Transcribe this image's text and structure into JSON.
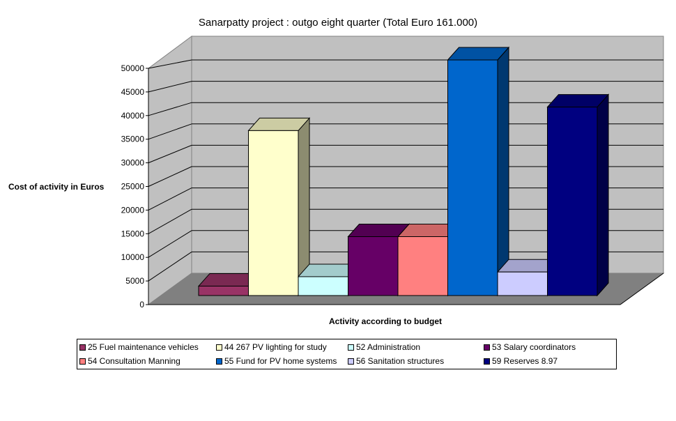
{
  "chart_data": {
    "type": "bar",
    "title": "Sanarpatty project : outgo eight quarter (Total Euro 161.000)",
    "xlabel": "Activity according to budget",
    "ylabel": "Cost of activity in Euros",
    "ylim": [
      0,
      50000
    ],
    "yticks": [
      "0",
      "5000",
      "10000",
      "15000",
      "20000",
      "25000",
      "30000",
      "35000",
      "40000",
      "45000",
      "50000"
    ],
    "grid": true,
    "legend_placement": "bottom",
    "series": [
      {
        "name": "25 Fuel maintenance vehicles",
        "value": 2000,
        "color": "#993366"
      },
      {
        "name": "44 267 PV lighting for study",
        "value": 35000,
        "color": "#FFFFCC"
      },
      {
        "name": "52 Administration",
        "value": 4000,
        "color": "#CCFFFF"
      },
      {
        "name": "53 Salary coordinators",
        "value": 12500,
        "color": "#660066"
      },
      {
        "name": "54 Consultation Manning",
        "value": 12500,
        "color": "#FF8080"
      },
      {
        "name": "55 Fund for PV home systems",
        "value": 50000,
        "color": "#0066CC"
      },
      {
        "name": "56 Sanitation structures",
        "value": 5000,
        "color": "#CCCCFF"
      },
      {
        "name": "59 Reserves 8.97",
        "value": 40000,
        "color": "#000080"
      }
    ]
  }
}
